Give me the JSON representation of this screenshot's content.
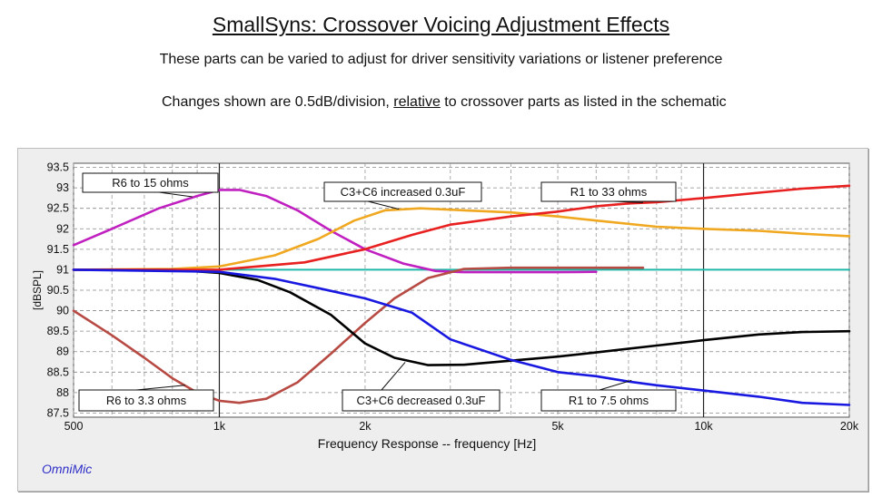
{
  "header": {
    "title": "SmallSyns: Crossover Voicing Adjustment Effects",
    "subtitle": "These parts can be varied to adjust for driver sensitivity variations or listener preference",
    "note_before": "Changes shown are 0.5dB/division, ",
    "note_emph": "relative",
    "note_after": " to crossover parts as listed in the schematic"
  },
  "brand": "OmniMic",
  "colors": {
    "baseline": "#20b8a8",
    "R6_high": "#c020c0",
    "R6_low": "#b84a44",
    "C_up": "#f0a820",
    "C_down": "#000000",
    "R1_high": "#e82020",
    "R1_low": "#1818e0"
  },
  "chart_data": {
    "type": "line",
    "xscale": "log",
    "xlabel": "Frequency Response -- frequency [Hz]",
    "ylabel": "[dBSPL]",
    "xlim": [
      500,
      20000
    ],
    "ylim": [
      87.4,
      93.6
    ],
    "grid": true,
    "xticks": [
      {
        "value": 500,
        "label": "500"
      },
      {
        "value": 1000,
        "label": "1k"
      },
      {
        "value": 2000,
        "label": "2k"
      },
      {
        "value": 5000,
        "label": "5k"
      },
      {
        "value": 10000,
        "label": "10k"
      },
      {
        "value": 20000,
        "label": "20k"
      }
    ],
    "yticks": [
      {
        "value": 93.5,
        "label": "93.5"
      },
      {
        "value": 93,
        "label": "93"
      },
      {
        "value": 92.5,
        "label": "92.5"
      },
      {
        "value": 92,
        "label": "92"
      },
      {
        "value": 91.5,
        "label": "91.5"
      },
      {
        "value": 91,
        "label": "91"
      },
      {
        "value": 90.5,
        "label": "90.5"
      },
      {
        "value": 90,
        "label": "90"
      },
      {
        "value": 89.5,
        "label": "89.5"
      },
      {
        "value": 89,
        "label": "89"
      },
      {
        "value": 88.5,
        "label": "88.5"
      },
      {
        "value": 88,
        "label": "88"
      },
      {
        "value": 87.5,
        "label": "87.5"
      }
    ],
    "series": [
      {
        "key": "baseline",
        "points": [
          [
            500,
            91
          ],
          [
            20000,
            91
          ]
        ]
      },
      {
        "key": "R6_high",
        "annotation": "R6 to 15 ohms",
        "points": [
          [
            500,
            91.6
          ],
          [
            600,
            92.0
          ],
          [
            750,
            92.5
          ],
          [
            900,
            92.8
          ],
          [
            1000,
            92.95
          ],
          [
            1100,
            92.95
          ],
          [
            1250,
            92.8
          ],
          [
            1450,
            92.45
          ],
          [
            1700,
            91.95
          ],
          [
            2000,
            91.5
          ],
          [
            2400,
            91.15
          ],
          [
            2800,
            90.97
          ],
          [
            3200,
            90.94
          ],
          [
            4000,
            90.94
          ],
          [
            5000,
            90.94
          ],
          [
            6000,
            90.95
          ]
        ]
      },
      {
        "key": "R6_low",
        "annotation": "R6 to 3.3 ohms",
        "points": [
          [
            500,
            90.0
          ],
          [
            600,
            89.4
          ],
          [
            700,
            88.85
          ],
          [
            800,
            88.35
          ],
          [
            900,
            88.0
          ],
          [
            1000,
            87.8
          ],
          [
            1100,
            87.75
          ],
          [
            1250,
            87.85
          ],
          [
            1450,
            88.25
          ],
          [
            1700,
            88.95
          ],
          [
            2000,
            89.7
          ],
          [
            2300,
            90.3
          ],
          [
            2700,
            90.8
          ],
          [
            3200,
            91.02
          ],
          [
            4000,
            91.05
          ],
          [
            5000,
            91.05
          ],
          [
            7500,
            91.05
          ]
        ]
      },
      {
        "key": "C_up",
        "annotation": "C3+C6 increased 0.3uF",
        "points": [
          [
            500,
            91.0
          ],
          [
            800,
            91.02
          ],
          [
            1000,
            91.08
          ],
          [
            1300,
            91.35
          ],
          [
            1600,
            91.75
          ],
          [
            1900,
            92.2
          ],
          [
            2200,
            92.45
          ],
          [
            2600,
            92.5
          ],
          [
            3200,
            92.45
          ],
          [
            4000,
            92.4
          ],
          [
            5000,
            92.3
          ],
          [
            6000,
            92.2
          ],
          [
            8000,
            92.05
          ],
          [
            10000,
            92.0
          ],
          [
            13000,
            91.95
          ],
          [
            16000,
            91.88
          ],
          [
            20000,
            91.82
          ]
        ]
      },
      {
        "key": "C_down",
        "annotation": "C3+C6 decreased 0.3uF",
        "points": [
          [
            500,
            91.0
          ],
          [
            800,
            91.0
          ],
          [
            1000,
            90.92
          ],
          [
            1200,
            90.75
          ],
          [
            1400,
            90.45
          ],
          [
            1700,
            89.9
          ],
          [
            2000,
            89.2
          ],
          [
            2300,
            88.85
          ],
          [
            2700,
            88.67
          ],
          [
            3200,
            88.68
          ],
          [
            4000,
            88.78
          ],
          [
            5000,
            88.88
          ],
          [
            6000,
            88.98
          ],
          [
            8000,
            89.15
          ],
          [
            10000,
            89.28
          ],
          [
            13000,
            89.42
          ],
          [
            16000,
            89.48
          ],
          [
            20000,
            89.5
          ]
        ]
      },
      {
        "key": "R1_high",
        "annotation": "R1 to 33 ohms",
        "points": [
          [
            500,
            91.0
          ],
          [
            1000,
            91.0
          ],
          [
            1500,
            91.18
          ],
          [
            2000,
            91.5
          ],
          [
            2500,
            91.85
          ],
          [
            3000,
            92.1
          ],
          [
            4000,
            92.3
          ],
          [
            5000,
            92.42
          ],
          [
            6000,
            92.55
          ],
          [
            7000,
            92.62
          ],
          [
            8000,
            92.65
          ],
          [
            10000,
            92.75
          ],
          [
            13000,
            92.88
          ],
          [
            16000,
            92.98
          ],
          [
            20000,
            93.05
          ]
        ]
      },
      {
        "key": "R1_low",
        "annotation": "R1 to 7.5 ohms",
        "points": [
          [
            500,
            91.0
          ],
          [
            1000,
            90.95
          ],
          [
            1300,
            90.78
          ],
          [
            1600,
            90.55
          ],
          [
            2000,
            90.3
          ],
          [
            2500,
            89.95
          ],
          [
            3000,
            89.3
          ],
          [
            4000,
            88.8
          ],
          [
            5000,
            88.5
          ],
          [
            6000,
            88.4
          ],
          [
            7000,
            88.27
          ],
          [
            8000,
            88.18
          ],
          [
            10000,
            88.05
          ],
          [
            13000,
            87.9
          ],
          [
            16000,
            87.75
          ],
          [
            20000,
            87.7
          ]
        ]
      }
    ]
  }
}
